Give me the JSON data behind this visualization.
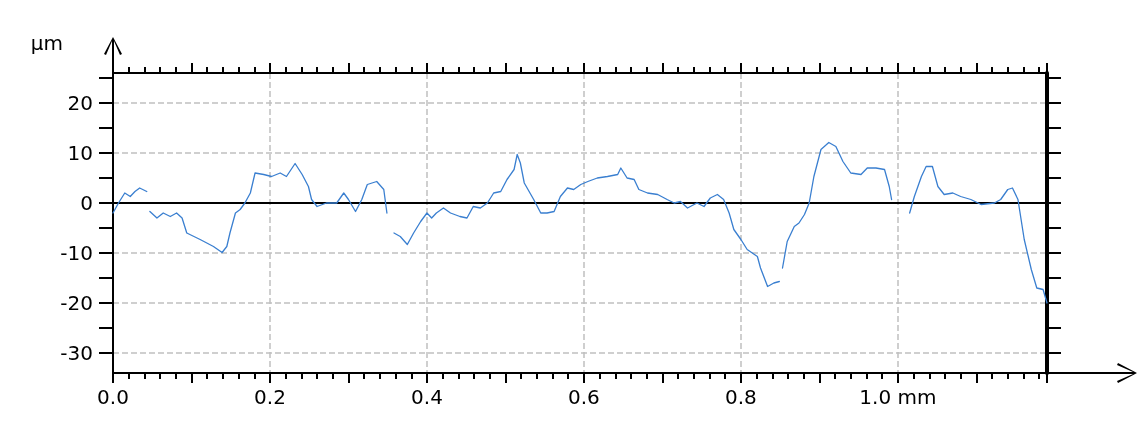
{
  "chart_data": {
    "type": "line",
    "ylabel": "µm",
    "xlim": [
      0,
      1.19
    ],
    "ylim": [
      -34,
      26
    ],
    "xticks": [
      {
        "value": 0,
        "label": "0.0"
      },
      {
        "value": 0.1,
        "label": null
      },
      {
        "value": 0.2,
        "label": "0.2"
      },
      {
        "value": 0.3,
        "label": null
      },
      {
        "value": 0.4,
        "label": "0.4"
      },
      {
        "value": 0.5,
        "label": null
      },
      {
        "value": 0.6,
        "label": "0.6"
      },
      {
        "value": 0.7,
        "label": null
      },
      {
        "value": 0.8,
        "label": "0.8"
      },
      {
        "value": 0.9,
        "label": null
      },
      {
        "value": 1.0,
        "label": "1.0 mm"
      },
      {
        "value": 1.1,
        "label": null
      }
    ],
    "yticks": [
      -30,
      {
        "value": -25,
        "label": null
      },
      -20,
      {
        "value": -15,
        "label": null
      },
      -10,
      {
        "value": -5,
        "label": null
      },
      0,
      {
        "value": 5,
        "label": null
      },
      10,
      {
        "value": 15,
        "label": null
      },
      20,
      {
        "value": 25,
        "label": null
      }
    ],
    "grid": true,
    "marker": "none",
    "line_style": "solid",
    "ref_lines": [
      {
        "axis": "y",
        "value": 0,
        "color": "#000000"
      }
    ],
    "series": [
      {
        "color": "#3a7fd0",
        "x": [
          0,
          0.007,
          0.015,
          0.022,
          0.028,
          0.034,
          0.043,
          0.045,
          0.047,
          0.056,
          0.064,
          0.073,
          0.081,
          0.088,
          0.094,
          0.111,
          0.128,
          0.139,
          0.145,
          0.149,
          0.156,
          0.162,
          0.168,
          0.175,
          0.181,
          0.192,
          0.202,
          0.213,
          0.221,
          0.232,
          0.241,
          0.249,
          0.253,
          0.26,
          0.272,
          0.285,
          0.294,
          0.3,
          0.309,
          0.317,
          0.324,
          0.336,
          0.345,
          0.349,
          0.353,
          0.358,
          0.366,
          0.375,
          0.383,
          0.392,
          0.4,
          0.406,
          0.412,
          0.421,
          0.43,
          0.442,
          0.451,
          0.459,
          0.468,
          0.477,
          0.485,
          0.494,
          0.502,
          0.511,
          0.515,
          0.519,
          0.524,
          0.536,
          0.545,
          0.553,
          0.562,
          0.57,
          0.579,
          0.587,
          0.596,
          0.605,
          0.617,
          0.63,
          0.643,
          0.647,
          0.655,
          0.664,
          0.67,
          0.681,
          0.694,
          0.706,
          0.715,
          0.723,
          0.732,
          0.744,
          0.753,
          0.761,
          0.77,
          0.778,
          0.785,
          0.791,
          0.8,
          0.808,
          0.821,
          0.825,
          0.834,
          0.842,
          0.849,
          0.851,
          0.853,
          0.859,
          0.868,
          0.874,
          0.881,
          0.887,
          0.893,
          0.902,
          0.912,
          0.921,
          0.93,
          0.94,
          0.953,
          0.961,
          0.972,
          0.983,
          0.989,
          0.992,
          1.0,
          1.015,
          1.021,
          1.03,
          1.036,
          1.044,
          1.051,
          1.059,
          1.07,
          1.08,
          1.093,
          1.106,
          1.123,
          1.131,
          1.14,
          1.146,
          1.153,
          1.161,
          1.17,
          1.177,
          1.185,
          1.19
        ],
        "values": [
          -2.0,
          0,
          2.0,
          1.3,
          2.3,
          3.0,
          2.3,
          null,
          -1.7,
          -3.0,
          -2.0,
          -2.7,
          -2.0,
          -3.0,
          -6.0,
          -7.3,
          -8.7,
          -9.9,
          -8.7,
          -6.0,
          -2.0,
          -1.3,
          0,
          2.0,
          6.0,
          5.7,
          5.3,
          6.0,
          5.3,
          7.9,
          5.7,
          3.3,
          0.7,
          -0.7,
          0,
          0,
          2.0,
          0.7,
          -1.7,
          0.7,
          3.7,
          4.3,
          2.7,
          -2.0,
          null,
          -6.0,
          -6.7,
          -8.3,
          -6.0,
          -3.7,
          -2.0,
          -3.0,
          -2.0,
          -1.0,
          -2.0,
          -2.7,
          -3.0,
          -0.7,
          -1.0,
          0,
          2.0,
          2.3,
          4.7,
          6.7,
          9.7,
          8.0,
          4.0,
          0.7,
          -2.0,
          -2.0,
          -1.7,
          1.3,
          3.0,
          2.7,
          3.7,
          4.3,
          5.0,
          5.3,
          5.7,
          7.0,
          5.0,
          4.7,
          2.7,
          2.0,
          1.7,
          0.7,
          0,
          0.3,
          -1.0,
          0,
          -0.7,
          1.0,
          1.7,
          0.7,
          -2.0,
          -5.3,
          -7.3,
          -9.3,
          -10.7,
          -13.0,
          -16.7,
          -16.0,
          -15.7,
          null,
          -13.0,
          -7.7,
          -4.7,
          -4.0,
          -2.3,
          0,
          5.3,
          10.7,
          12.1,
          11.3,
          8.3,
          6.0,
          5.7,
          7.0,
          7.0,
          6.7,
          3.3,
          0.7,
          null,
          -2.0,
          1.3,
          5.3,
          7.3,
          7.3,
          3.3,
          1.7,
          2.0,
          1.3,
          0.7,
          -0.3,
          0,
          0.7,
          2.7,
          3.0,
          0.7,
          -7.3,
          -13.3,
          -17.0,
          -17.3,
          -20.0
        ]
      }
    ]
  }
}
